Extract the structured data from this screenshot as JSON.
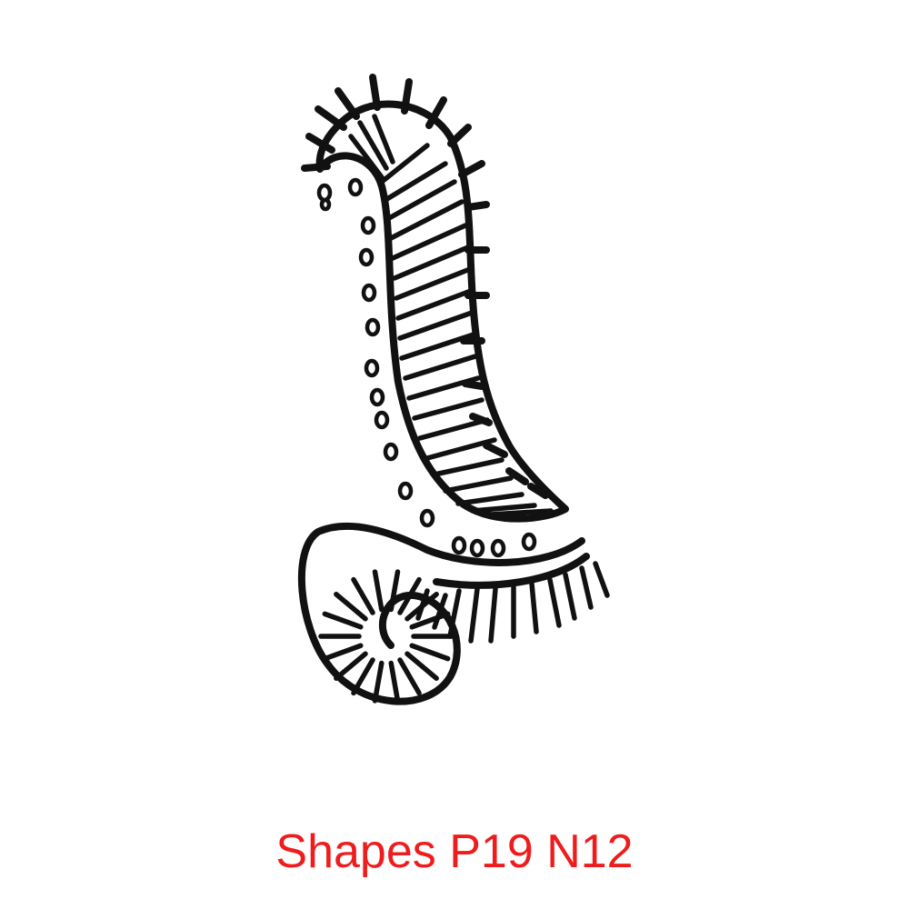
{
  "caption": "Shapes P19 N12",
  "colors": {
    "caption": "#ee1c1c",
    "ink": "#111111",
    "background": "#ffffff"
  }
}
